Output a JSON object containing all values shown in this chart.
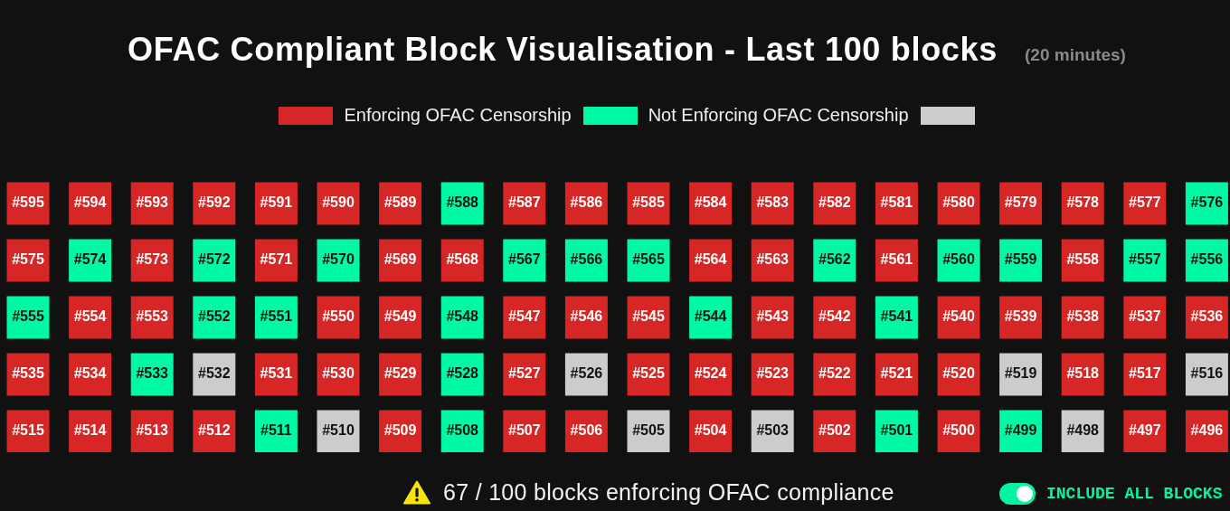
{
  "chart_data": {
    "type": "heatmap",
    "title": "OFAC Compliant Block Visualisation - Last 100 blocks",
    "subtitle": "(20 minutes)",
    "categories": [
      null,
      null,
      null,
      null,
      null,
      null,
      null,
      null,
      null,
      null,
      null,
      null,
      null,
      null,
      null,
      null,
      null,
      null,
      null,
      null
    ],
    "y_categories": [
      null,
      null,
      null,
      null,
      null
    ],
    "cells": [
      [
        595,
        594,
        593,
        592,
        591,
        590,
        589,
        588,
        587,
        586,
        585,
        584,
        583,
        582,
        581,
        580,
        579,
        578,
        577,
        576
      ],
      [
        575,
        574,
        573,
        572,
        571,
        570,
        569,
        568,
        567,
        566,
        565,
        564,
        563,
        562,
        561,
        560,
        559,
        558,
        557,
        556
      ],
      [
        555,
        554,
        553,
        552,
        551,
        550,
        549,
        548,
        547,
        546,
        545,
        544,
        543,
        542,
        541,
        540,
        539,
        538,
        537,
        536
      ],
      [
        535,
        534,
        533,
        532,
        531,
        530,
        529,
        528,
        527,
        526,
        525,
        524,
        523,
        522,
        521,
        520,
        519,
        518,
        517,
        516
      ],
      [
        515,
        514,
        513,
        512,
        511,
        510,
        509,
        508,
        507,
        506,
        505,
        504,
        503,
        502,
        501,
        500,
        499,
        498,
        497,
        496
      ]
    ],
    "cell_labels": [
      [
        "#595",
        "#594",
        "#593",
        "#592",
        "#591",
        "#590",
        "#589",
        "#588",
        "#587",
        "#586",
        "#585",
        "#584",
        "#583",
        "#582",
        "#581",
        "#580",
        "#579",
        "#578",
        "#577",
        "#576"
      ],
      [
        "#575",
        "#574",
        "#573",
        "#572",
        "#571",
        "#570",
        "#569",
        "#568",
        "#567",
        "#566",
        "#565",
        "#564",
        "#563",
        "#562",
        "#561",
        "#560",
        "#559",
        "#558",
        "#557",
        "#556"
      ],
      [
        "#555",
        "#554",
        "#553",
        "#552",
        "#551",
        "#550",
        "#549",
        "#548",
        "#547",
        "#546",
        "#545",
        "#544",
        "#543",
        "#542",
        "#541",
        "#540",
        "#539",
        "#538",
        "#537",
        "#536"
      ],
      [
        "#535",
        "#534",
        "#533",
        "#532",
        "#531",
        "#530",
        "#529",
        "#528",
        "#527",
        "#526",
        "#525",
        "#524",
        "#523",
        "#522",
        "#521",
        "#520",
        "#519",
        "#518",
        "#517",
        "#516"
      ],
      [
        "#515",
        "#514",
        "#513",
        "#512",
        "#511",
        "#510",
        "#509",
        "#508",
        "#507",
        "#506",
        "#505",
        "#504",
        "#503",
        "#502",
        "#501",
        "#500",
        "#499",
        "#498",
        "#497",
        "#496"
      ]
    ],
    "colors": [
      "#d62626",
      "#d62626",
      "#d62626",
      "#d62626",
      "#d62626",
      "#d62626",
      "#d62626",
      "#00f9a6",
      "#d62626",
      "#d62626",
      "#d62626",
      "#d62626",
      "#d62626",
      "#d62626",
      "#d62626",
      "#d62626",
      "#d62626",
      "#d62626",
      "#d62626",
      "#00f9a6",
      "#d62626",
      "#00f9a6",
      "#d62626",
      "#00f9a6",
      "#d62626",
      "#00f9a6",
      "#d62626",
      "#d62626",
      "#00f9a6",
      "#00f9a6",
      "#00f9a6",
      "#d62626",
      "#d62626",
      "#00f9a6",
      "#d62626",
      "#00f9a6",
      "#00f9a6",
      "#d62626",
      "#00f9a6",
      "#00f9a6",
      "#00f9a6",
      "#d62626",
      "#d62626",
      "#00f9a6",
      "#00f9a6",
      "#d62626",
      "#d62626",
      "#00f9a6",
      "#d62626",
      "#d62626",
      "#d62626",
      "#00f9a6",
      "#d62626",
      "#d62626",
      "#00f9a6",
      "#d62626",
      "#d62626",
      "#d62626",
      "#d62626",
      "#d62626",
      "#d62626",
      "#d62626",
      "#00f9a6",
      "#cccccc",
      "#d62626",
      "#d62626",
      "#d62626",
      "#00f9a6",
      "#d62626",
      "#cccccc",
      "#d62626",
      "#d62626",
      "#d62626",
      "#d62626",
      "#d62626",
      "#d62626",
      "#cccccc",
      "#d62626",
      "#d62626",
      "#cccccc",
      "#d62626",
      "#d62626",
      "#d62626",
      "#d62626",
      "#00f9a6",
      "#cccccc",
      "#d62626",
      "#00f9a6",
      "#d62626",
      "#d62626",
      "#cccccc",
      "#d62626",
      "#cccccc",
      "#d62626",
      "#00f9a6",
      "#d62626",
      "#00f9a6",
      "#cccccc",
      "#d62626",
      "#d62626"
    ],
    "series": [
      {
        "name": "Enforcing OFAC Censorship",
        "color": "#d62626",
        "values": [
          null,
          null,
          null,
          null,
          null,
          null,
          null,
          null,
          null,
          null,
          null,
          null,
          null,
          null,
          null,
          null,
          null,
          null,
          null,
          null
        ]
      },
      {
        "name": "Not Enforcing OFAC Censorship",
        "color": "#00f9a6",
        "values": [
          null,
          null,
          null,
          null,
          null,
          null,
          null,
          null,
          null,
          null,
          null,
          null,
          null,
          null,
          null,
          null,
          null,
          null,
          null,
          null
        ]
      },
      {
        "color": "#cccccc",
        "values": [
          null,
          null,
          null,
          null,
          null,
          null,
          null,
          null,
          null,
          null,
          null,
          null,
          null,
          null,
          null,
          null,
          null,
          null,
          null,
          null
        ]
      }
    ],
    "legend": "top",
    "annotations": [
      "67 / 100 blocks enforcing OFAC compliance",
      "INCLUDE ALL BLOCKS"
    ]
  }
}
